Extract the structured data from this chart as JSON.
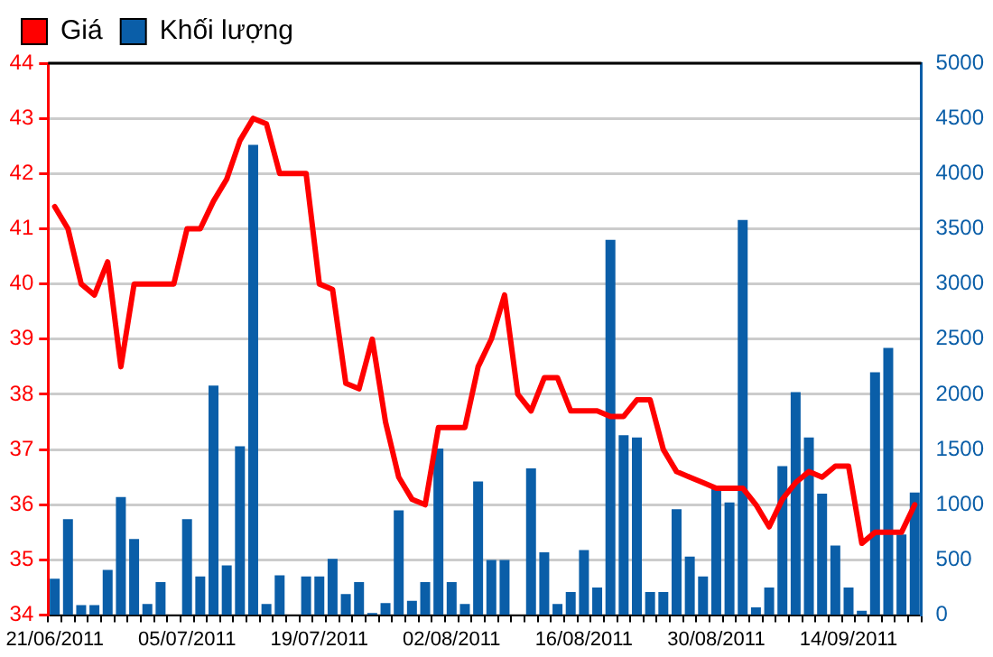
{
  "chart_data": {
    "type": "line",
    "categories": [
      "21/06/2011",
      null,
      null,
      null,
      null,
      null,
      null,
      null,
      null,
      null,
      "05/07/2011",
      null,
      null,
      null,
      null,
      null,
      null,
      null,
      null,
      null,
      "19/07/2011",
      null,
      null,
      null,
      null,
      null,
      null,
      null,
      null,
      null,
      "02/08/2011",
      null,
      null,
      null,
      null,
      null,
      null,
      null,
      null,
      null,
      "16/08/2011",
      null,
      null,
      null,
      null,
      null,
      null,
      null,
      null,
      null,
      "30/08/2011",
      null,
      null,
      null,
      null,
      null,
      null,
      null,
      null,
      null,
      "14/09/2011",
      null,
      null,
      null,
      null,
      null
    ],
    "series": [
      {
        "name": "Khối lượng",
        "type": "bar",
        "axis": "y2",
        "color": "#0a5ea8",
        "values": [
          330,
          870,
          90,
          90,
          410,
          1070,
          690,
          100,
          300,
          0,
          870,
          350,
          2080,
          450,
          1530,
          4260,
          100,
          360,
          0,
          350,
          350,
          510,
          190,
          300,
          20,
          110,
          950,
          130,
          300,
          1510,
          300,
          100,
          1210,
          500,
          500,
          0,
          1330,
          570,
          100,
          210,
          590,
          250,
          3400,
          1630,
          1610,
          210,
          210,
          960,
          530,
          350,
          1150,
          1020,
          3580,
          70,
          250,
          1350,
          2020,
          1610,
          1100,
          630,
          250,
          40,
          2200,
          2420,
          730,
          1110
        ]
      },
      {
        "name": "Giá",
        "axis": "y",
        "color": "#ff0000",
        "values": [
          41.4,
          41.0,
          40.0,
          39.8,
          40.4,
          38.5,
          40.0,
          40.0,
          40.0,
          40.0,
          41.0,
          41.0,
          41.5,
          41.9,
          42.6,
          43.0,
          42.9,
          42.0,
          42.0,
          42.0,
          40.0,
          39.9,
          38.2,
          38.1,
          39.0,
          37.5,
          36.5,
          36.1,
          36.0,
          37.4,
          37.4,
          37.4,
          38.5,
          39.0,
          39.8,
          38.0,
          37.7,
          38.3,
          38.3,
          37.7,
          37.7,
          37.7,
          37.6,
          37.6,
          37.9,
          37.9,
          37.0,
          36.6,
          36.5,
          36.4,
          36.3,
          36.3,
          36.3,
          36.0,
          35.6,
          36.1,
          36.4,
          36.6,
          36.5,
          36.7,
          36.7,
          35.3,
          35.5,
          35.5,
          35.5,
          36.0
        ]
      }
    ],
    "ylim": [
      34,
      44
    ],
    "yticks": [
      34,
      35,
      36,
      37,
      38,
      39,
      40,
      41,
      42,
      43,
      44
    ],
    "y2lim": [
      0,
      5000
    ],
    "y2ticks": [
      0,
      500,
      1000,
      1500,
      2000,
      2500,
      3000,
      3500,
      4000,
      4500,
      5000
    ],
    "grid": "y",
    "legend": "top left",
    "marker": "none",
    "line_style": "solid"
  }
}
